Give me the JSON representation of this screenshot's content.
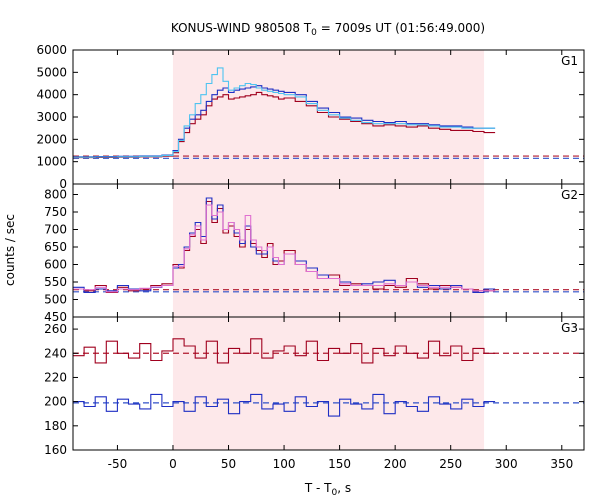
{
  "chart_data": {
    "type": "line",
    "title_main": "KONUS-WIND 980508 T",
    "title_sub": "0",
    "title_rest": " = 7009s UT (01:56:49.000)",
    "xlabel_main": "T - T",
    "xlabel_sub": "0",
    "xlabel_rest": ", s",
    "ylabel": "counts / sec",
    "xlim": [
      -90,
      370
    ],
    "xticks": [
      -50,
      0,
      50,
      100,
      150,
      200,
      250,
      300,
      350
    ],
    "shaded_interval": [
      0,
      280
    ],
    "colors": {
      "shade": "#fde8ea",
      "red": "#a0001e",
      "blue": "#1f2fc4",
      "cyan": "#4ec3f0",
      "pink": "#e070d0",
      "bg_red": "#b0182e",
      "bg_blue": "#3050c8"
    },
    "panels": [
      {
        "name": "G1",
        "ylim": [
          0,
          6000
        ],
        "yticks": [
          0,
          1000,
          2000,
          3000,
          4000,
          5000,
          6000
        ],
        "background_levels": [
          1250,
          1150
        ],
        "series": [
          {
            "color": "red",
            "x": [
              -90,
              -70,
              -50,
              -30,
              -10,
              0,
              5,
              10,
              15,
              20,
              25,
              30,
              35,
              40,
              45,
              50,
              55,
              60,
              65,
              70,
              75,
              80,
              85,
              90,
              95,
              100,
              110,
              120,
              130,
              140,
              150,
              160,
              170,
              180,
              190,
              200,
              210,
              220,
              230,
              240,
              250,
              260,
              270,
              280
            ],
            "y": [
              1180,
              1190,
              1200,
              1220,
              1250,
              1400,
              1900,
              2300,
              2700,
              2900,
              3100,
              3500,
              3800,
              3900,
              4000,
              3800,
              3850,
              3900,
              3950,
              4000,
              4100,
              4000,
              3950,
              3900,
              3800,
              3850,
              3700,
              3500,
              3200,
              3000,
              2900,
              2800,
              2700,
              2600,
              2650,
              2600,
              2550,
              2600,
              2500,
              2450,
              2400,
              2400,
              2350,
              2300
            ]
          },
          {
            "color": "blue",
            "x": [
              -90,
              -70,
              -50,
              -30,
              -10,
              0,
              5,
              10,
              15,
              20,
              25,
              30,
              35,
              40,
              45,
              50,
              55,
              60,
              65,
              70,
              75,
              80,
              85,
              90,
              95,
              100,
              110,
              120,
              130,
              140,
              150,
              160,
              170,
              180,
              190,
              200,
              210,
              220,
              230,
              240,
              250,
              260,
              270,
              280
            ],
            "y": [
              1220,
              1230,
              1240,
              1260,
              1300,
              1500,
              2000,
              2500,
              2900,
              3100,
              3300,
              3700,
              4000,
              4200,
              4300,
              4100,
              4200,
              4250,
              4300,
              4350,
              4400,
              4300,
              4250,
              4200,
              4150,
              4100,
              4000,
              3700,
              3400,
              3200,
              3000,
              2950,
              2850,
              2800,
              2750,
              2800,
              2700,
              2700,
              2650,
              2600,
              2600,
              2550,
              2500,
              2500
            ]
          },
          {
            "color": "cyan",
            "x": [
              -90,
              -70,
              -50,
              -30,
              -10,
              0,
              5,
              10,
              15,
              20,
              25,
              30,
              35,
              40,
              45,
              50,
              55,
              60,
              65,
              70,
              75,
              80,
              85,
              90,
              95,
              100,
              110,
              120,
              130,
              140,
              150,
              160,
              170,
              180,
              190,
              200,
              210,
              220,
              230,
              240,
              250,
              260,
              270,
              280
            ],
            "y": [
              1200,
              1210,
              1220,
              1240,
              1280,
              1450,
              1950,
              2600,
              3100,
              3600,
              4000,
              4500,
              4900,
              5200,
              4600,
              4200,
              4300,
              4400,
              4500,
              4450,
              4300,
              4200,
              4150,
              4100,
              4050,
              4000,
              3900,
              3600,
              3300,
              3100,
              2950,
              2850,
              2750,
              2700,
              2700,
              2700,
              2650,
              2650,
              2600,
              2550,
              2550,
              2500,
              2500,
              2500
            ]
          }
        ]
      },
      {
        "name": "G2",
        "ylim": [
          450,
          830
        ],
        "yticks": [
          450,
          500,
          550,
          600,
          650,
          700,
          750,
          800
        ],
        "background_levels": [
          528,
          522
        ],
        "series": [
          {
            "color": "red",
            "x": [
              -90,
              -80,
              -70,
              -60,
              -50,
              -40,
              -30,
              -20,
              -10,
              0,
              5,
              10,
              15,
              20,
              25,
              30,
              35,
              40,
              45,
              50,
              55,
              60,
              65,
              70,
              75,
              80,
              85,
              90,
              95,
              100,
              110,
              120,
              130,
              140,
              150,
              160,
              170,
              180,
              190,
              200,
              210,
              220,
              230,
              240,
              250,
              260,
              270,
              280
            ],
            "y": [
              530,
              525,
              540,
              520,
              535,
              525,
              530,
              540,
              545,
              600,
              590,
              640,
              680,
              700,
              660,
              780,
              720,
              760,
              690,
              710,
              680,
              650,
              700,
              660,
              640,
              620,
              660,
              600,
              610,
              640,
              600,
              580,
              560,
              570,
              540,
              545,
              540,
              530,
              540,
              535,
              560,
              545,
              530,
              540,
              535,
              530,
              525,
              525
            ]
          },
          {
            "color": "blue",
            "x": [
              -90,
              -80,
              -70,
              -60,
              -50,
              -40,
              -30,
              -20,
              -10,
              0,
              5,
              10,
              15,
              20,
              25,
              30,
              35,
              40,
              45,
              50,
              55,
              60,
              65,
              70,
              75,
              80,
              85,
              90,
              95,
              100,
              110,
              120,
              130,
              140,
              150,
              160,
              170,
              180,
              190,
              200,
              210,
              220,
              230,
              240,
              250,
              260,
              270,
              280
            ],
            "y": [
              535,
              520,
              530,
              525,
              540,
              530,
              525,
              535,
              540,
              590,
              600,
              650,
              690,
              720,
              680,
              790,
              730,
              770,
              700,
              720,
              690,
              660,
              710,
              650,
              630,
              630,
              650,
              610,
              600,
              630,
              610,
              590,
              570,
              560,
              550,
              540,
              545,
              550,
              555,
              540,
              550,
              535,
              540,
              530,
              540,
              530,
              520,
              530
            ]
          },
          {
            "color": "pink",
            "x": [
              -90,
              -80,
              -70,
              -60,
              -50,
              -40,
              -30,
              -20,
              -10,
              0,
              5,
              10,
              15,
              20,
              25,
              30,
              35,
              40,
              45,
              50,
              55,
              60,
              65,
              70,
              75,
              80,
              85,
              90,
              95,
              100,
              110,
              120,
              130,
              140,
              150,
              160,
              170,
              180,
              190,
              200,
              210,
              220,
              230,
              240,
              250,
              260,
              270,
              280
            ],
            "y": [
              530,
              528,
              535,
              522,
              530,
              528,
              532,
              536,
              540,
              595,
              595,
              645,
              685,
              710,
              670,
              770,
              740,
              750,
              700,
              720,
              700,
              670,
              740,
              670,
              650,
              640,
              650,
              620,
              600,
              630,
              600,
              580,
              560,
              560,
              545,
              540,
              540,
              540,
              545,
              540,
              550,
              540,
              535,
              535,
              535,
              530,
              525,
              525
            ]
          }
        ]
      },
      {
        "name": "G3",
        "ylim": [
          160,
          270
        ],
        "yticks": [
          160,
          180,
          200,
          220,
          240,
          260
        ],
        "background_levels": [
          240,
          199
        ],
        "series": [
          {
            "color": "red",
            "x": [
              -90,
              -80,
              -70,
              -60,
              -50,
              -40,
              -30,
              -20,
              -10,
              0,
              10,
              20,
              30,
              40,
              50,
              60,
              70,
              80,
              90,
              100,
              110,
              120,
              130,
              140,
              150,
              160,
              170,
              180,
              190,
              200,
              210,
              220,
              230,
              240,
              250,
              260,
              270,
              280
            ],
            "y": [
              238,
              245,
              232,
              250,
              240,
              236,
              248,
              234,
              242,
              252,
              246,
              236,
              250,
              232,
              244,
              240,
              252,
              236,
              242,
              246,
              238,
              250,
              234,
              244,
              240,
              248,
              232,
              244,
              238,
              246,
              240,
              236,
              250,
              238,
              246,
              234,
              244,
              240
            ]
          },
          {
            "color": "blue",
            "x": [
              -90,
              -80,
              -70,
              -60,
              -50,
              -40,
              -30,
              -20,
              -10,
              0,
              10,
              20,
              30,
              40,
              50,
              60,
              70,
              80,
              90,
              100,
              110,
              120,
              130,
              140,
              150,
              160,
              170,
              180,
              190,
              200,
              210,
              220,
              230,
              240,
              250,
              260,
              270,
              280
            ],
            "y": [
              200,
              196,
              204,
              192,
              202,
              198,
              194,
              206,
              196,
              200,
              192,
              204,
              196,
              202,
              190,
              200,
              206,
              194,
              198,
              192,
              204,
              196,
              200,
              188,
              202,
              198,
              194,
              206,
              190,
              200,
              196,
              192,
              204,
              198,
              194,
              202,
              196,
              200
            ]
          }
        ]
      }
    ]
  }
}
